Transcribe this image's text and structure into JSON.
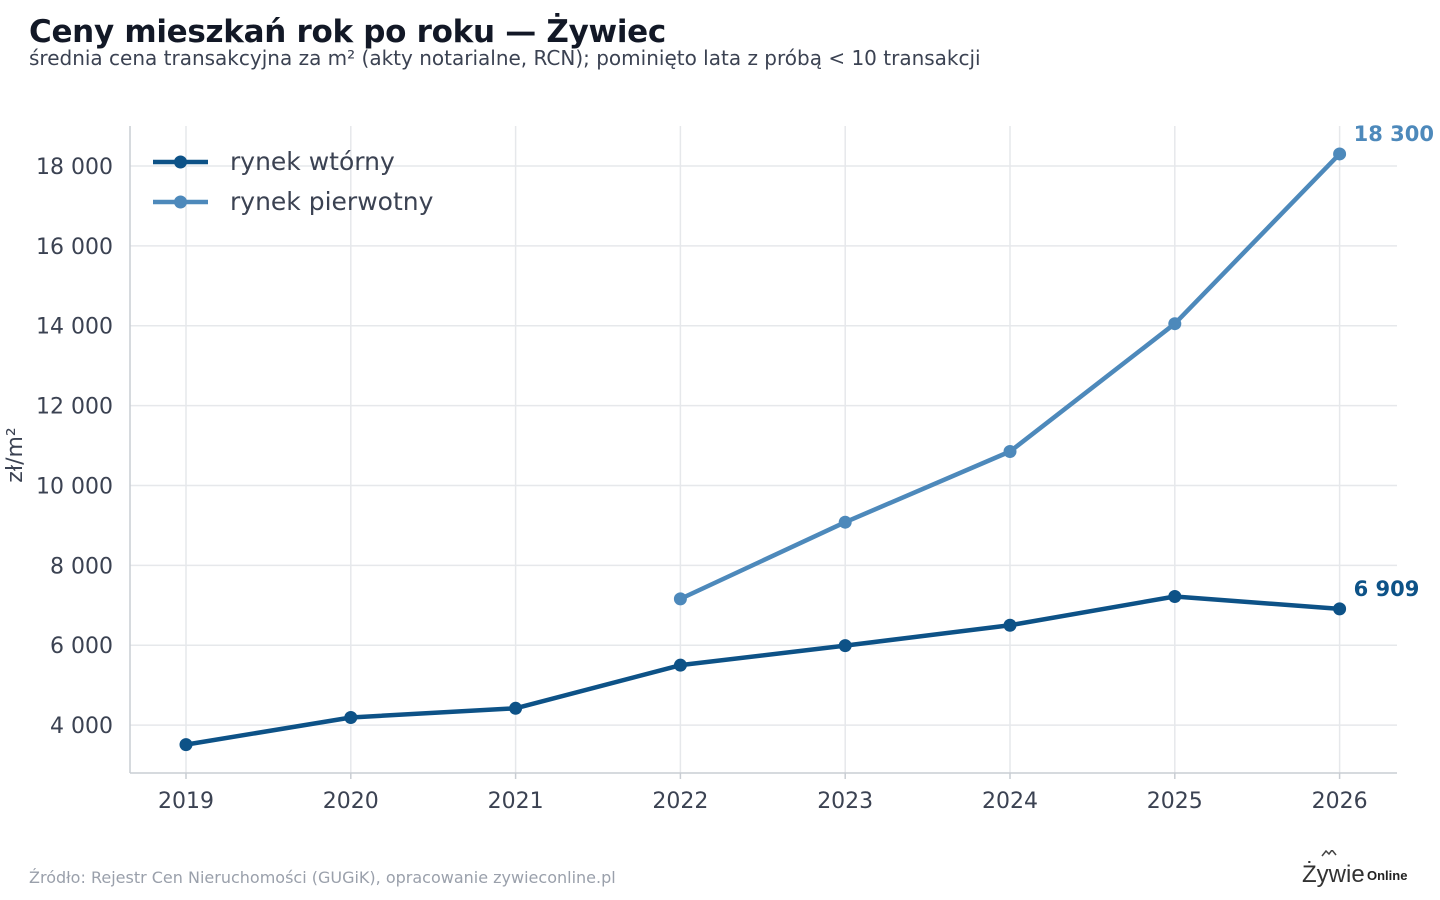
{
  "title": "Ceny mieszkań rok po roku — Żywiec",
  "subtitle": "średnia cena transakcyjna za m² (akty notarialne, RCN); pominięto lata z próbą < 10 transakcji",
  "source": "Źródło: Rejestr Cen Nieruchomości (GUGiK), opracowanie zywieconline.pl",
  "logo_text": "Żywieconline",
  "colors": {
    "secondary": "#0d5287",
    "primary": "#4d89bb",
    "grid": "#e6e8eb",
    "axis": "#c9cdd3"
  },
  "chart_data": {
    "type": "line",
    "title": "Ceny mieszkań rok po roku — Żywiec",
    "subtitle": "średnia cena transakcyjna za m² (akty notarialne, RCN); pominięto lata z próbą < 10 transakcji",
    "xlabel": "",
    "ylabel": "zł/m²",
    "x": [
      2019,
      2020,
      2021,
      2022,
      2023,
      2024,
      2025,
      2026
    ],
    "ylim": [
      2800,
      19000
    ],
    "yticks": [
      4000,
      6000,
      8000,
      10000,
      12000,
      14000,
      16000,
      18000
    ],
    "ytick_labels": [
      "4 000",
      "6 000",
      "8 000",
      "10 000",
      "12 000",
      "14 000",
      "16 000",
      "18 000"
    ],
    "grid": true,
    "legend_position": "top-left",
    "series": [
      {
        "name": "rynek wtórny",
        "color": "#0d5287",
        "values": [
          3510,
          4190,
          4420,
          5500,
          5990,
          6500,
          7220,
          6909
        ],
        "end_label": "6 909"
      },
      {
        "name": "rynek pierwotny",
        "color": "#4d89bb",
        "values": [
          null,
          null,
          null,
          7160,
          9080,
          10850,
          14050,
          18300
        ],
        "end_label": "18 300"
      }
    ]
  }
}
